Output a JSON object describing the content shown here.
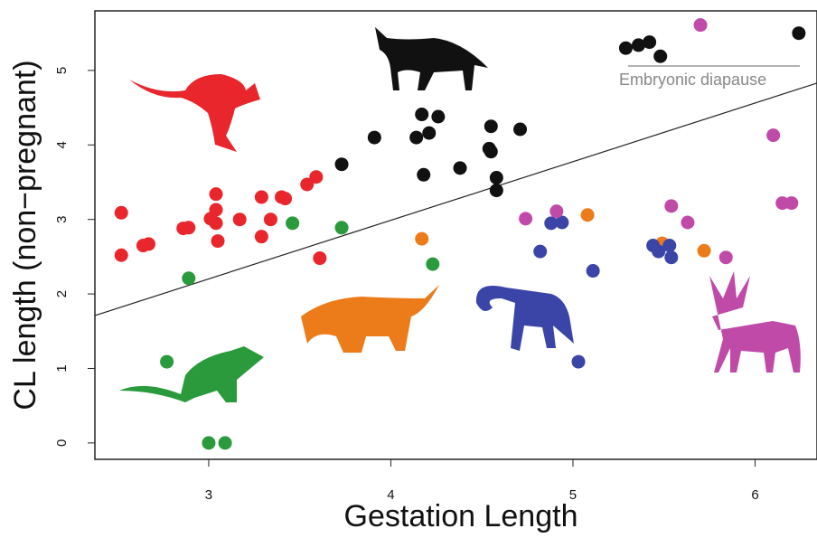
{
  "chart_data": {
    "type": "scatter",
    "xlabel": "Gestation Length",
    "ylabel": "CL length (non−pregnant)",
    "annotation": "Embryonic diapause",
    "xlim": [
      2.375,
      6.34
    ],
    "ylim": [
      -0.22,
      5.8
    ],
    "xticks": [
      3,
      4,
      5,
      6
    ],
    "yticks": [
      0,
      1,
      2,
      3,
      4,
      5
    ],
    "series": [
      {
        "color": "#e8262c",
        "x": [
          2.52,
          2.52,
          2.64,
          2.67,
          2.86,
          2.89,
          3.04,
          3.01,
          3.04,
          3.04,
          3.05,
          3.17,
          3.29,
          3.29,
          3.34,
          3.4,
          3.42,
          3.54,
          3.59,
          3.61
        ],
        "values": [
          3.09,
          2.52,
          2.65,
          2.67,
          2.88,
          2.89,
          3.34,
          3.01,
          3.13,
          2.95,
          2.71,
          3.0,
          3.3,
          2.77,
          3.0,
          3.3,
          3.28,
          3.47,
          3.57,
          2.48
        ]
      },
      {
        "color": "#111111",
        "x": [
          3.73,
          3.91,
          4.14,
          4.17,
          4.21,
          4.26,
          4.18,
          4.38,
          4.55,
          4.54,
          4.55,
          4.58,
          4.58,
          4.71,
          5.29,
          5.36,
          5.42,
          5.48,
          6.24
        ],
        "values": [
          3.74,
          4.1,
          4.1,
          4.41,
          4.16,
          4.38,
          3.6,
          3.69,
          4.25,
          3.95,
          3.91,
          3.56,
          3.39,
          4.21,
          5.3,
          5.34,
          5.38,
          5.19,
          5.5
        ]
      },
      {
        "color": "#2a9a3c",
        "x": [
          3.46,
          3.73,
          2.89,
          2.77,
          3.0,
          3.09,
          4.23
        ],
        "values": [
          2.95,
          2.89,
          2.21,
          1.09,
          0,
          0,
          2.4
        ]
      },
      {
        "color": "#ec7b1a",
        "x": [
          4.17,
          5.08,
          5.72,
          5.49
        ],
        "values": [
          2.74,
          3.06,
          2.58,
          2.68
        ]
      },
      {
        "color": "#3b45a8",
        "x": [
          4.82,
          4.88,
          4.94,
          5.11,
          5.03,
          5.44,
          5.47,
          5.53,
          5.54
        ],
        "values": [
          2.57,
          2.95,
          2.96,
          2.31,
          1.09,
          2.65,
          2.57,
          2.65,
          2.49
        ]
      },
      {
        "color": "#c04aa8",
        "x": [
          4.74,
          4.91,
          5.54,
          5.63,
          5.84,
          5.7,
          6.1,
          6.15,
          6.2
        ],
        "values": [
          3.01,
          3.11,
          3.18,
          2.96,
          2.49,
          5.61,
          4.13,
          3.22,
          3.22
        ]
      }
    ],
    "lines": [
      {
        "color": "#222222",
        "x": [
          2.375,
          6.34
        ],
        "values": [
          1.71,
          4.83
        ]
      }
    ]
  }
}
